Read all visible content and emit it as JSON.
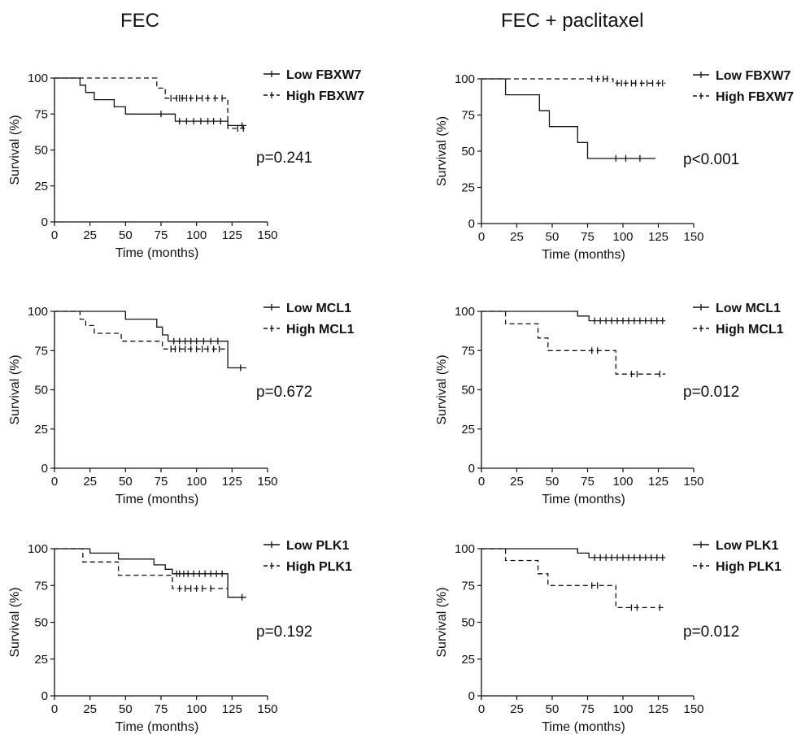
{
  "columns": [
    {
      "title": "FEC"
    },
    {
      "title": "FEC + paclitaxel"
    }
  ],
  "chart_data": [
    {
      "type": "line",
      "panel": "FEC - FBXW7",
      "xlabel": "Time (months)",
      "ylabel": "Survival (%)",
      "xlim": [
        0,
        150
      ],
      "ylim": [
        0,
        100
      ],
      "xticks": [
        0,
        25,
        50,
        75,
        100,
        125,
        150
      ],
      "yticks": [
        0,
        25,
        50,
        75,
        100
      ],
      "annotation": "p=0.241",
      "legend_position": "top-right",
      "series": [
        {
          "name": "Low FBXW7",
          "style": "solid",
          "steps": [
            [
              0,
              100
            ],
            [
              18,
              100
            ],
            [
              18,
              95
            ],
            [
              22,
              95
            ],
            [
              22,
              90
            ],
            [
              28,
              90
            ],
            [
              28,
              85
            ],
            [
              42,
              85
            ],
            [
              42,
              80
            ],
            [
              50,
              80
            ],
            [
              50,
              75
            ],
            [
              85,
              75
            ],
            [
              85,
              70
            ],
            [
              122,
              70
            ],
            [
              122,
              67
            ],
            [
              135,
              67
            ]
          ],
          "censored": [
            [
              75,
              75
            ],
            [
              88,
              70
            ],
            [
              93,
              70
            ],
            [
              98,
              70
            ],
            [
              103,
              70
            ],
            [
              108,
              70
            ],
            [
              112,
              70
            ],
            [
              117,
              70
            ],
            [
              132,
              67
            ]
          ]
        },
        {
          "name": "High FBXW7",
          "style": "dashed",
          "steps": [
            [
              0,
              100
            ],
            [
              72,
              100
            ],
            [
              72,
              93
            ],
            [
              78,
              93
            ],
            [
              78,
              86
            ],
            [
              122,
              86
            ],
            [
              122,
              65
            ],
            [
              135,
              65
            ]
          ],
          "censored": [
            [
              82,
              86
            ],
            [
              86,
              86
            ],
            [
              88,
              86
            ],
            [
              90,
              86
            ],
            [
              93,
              86
            ],
            [
              96,
              86
            ],
            [
              100,
              86
            ],
            [
              104,
              86
            ],
            [
              108,
              86
            ],
            [
              113,
              86
            ],
            [
              118,
              86
            ],
            [
              129,
              65
            ],
            [
              133,
              65
            ]
          ]
        }
      ]
    },
    {
      "type": "line",
      "panel": "FEC + paclitaxel - FBXW7",
      "xlabel": "Time (months)",
      "ylabel": "Survival (%)",
      "xlim": [
        0,
        150
      ],
      "ylim": [
        0,
        100
      ],
      "xticks": [
        0,
        25,
        50,
        75,
        100,
        125,
        150
      ],
      "yticks": [
        0,
        25,
        50,
        75,
        100
      ],
      "annotation": "p<0.001",
      "legend_position": "top-right",
      "series": [
        {
          "name": "Low FBXW7",
          "style": "solid",
          "steps": [
            [
              0,
              100
            ],
            [
              17,
              100
            ],
            [
              17,
              89
            ],
            [
              41,
              89
            ],
            [
              41,
              78
            ],
            [
              48,
              78
            ],
            [
              48,
              67
            ],
            [
              68,
              67
            ],
            [
              68,
              56
            ],
            [
              75,
              56
            ],
            [
              75,
              45
            ],
            [
              123,
              45
            ]
          ],
          "censored": [
            [
              95,
              45
            ],
            [
              102,
              45
            ],
            [
              112,
              45
            ]
          ]
        },
        {
          "name": "High FBXW7",
          "style": "dashed",
          "steps": [
            [
              0,
              100
            ],
            [
              93,
              100
            ],
            [
              93,
              97
            ],
            [
              130,
              97
            ]
          ],
          "censored": [
            [
              78,
              100
            ],
            [
              82,
              100
            ],
            [
              86,
              100
            ],
            [
              89,
              100
            ],
            [
              96,
              97
            ],
            [
              99,
              97
            ],
            [
              102,
              97
            ],
            [
              106,
              97
            ],
            [
              109,
              97
            ],
            [
              113,
              97
            ],
            [
              117,
              97
            ],
            [
              121,
              97
            ],
            [
              125,
              97
            ],
            [
              128,
              97
            ]
          ]
        }
      ]
    },
    {
      "type": "line",
      "panel": "FEC - MCL1",
      "xlabel": "Time (months)",
      "ylabel": "Survival (%)",
      "xlim": [
        0,
        150
      ],
      "ylim": [
        0,
        100
      ],
      "xticks": [
        0,
        25,
        50,
        75,
        100,
        125,
        150
      ],
      "yticks": [
        0,
        25,
        50,
        75,
        100
      ],
      "annotation": "p=0.672",
      "legend_position": "top-right",
      "series": [
        {
          "name": "Low MCL1",
          "style": "solid",
          "steps": [
            [
              0,
              100
            ],
            [
              50,
              100
            ],
            [
              50,
              95
            ],
            [
              72,
              95
            ],
            [
              72,
              90
            ],
            [
              76,
              90
            ],
            [
              76,
              85
            ],
            [
              80,
              85
            ],
            [
              80,
              81
            ],
            [
              122,
              81
            ],
            [
              122,
              64
            ],
            [
              135,
              64
            ]
          ],
          "censored": [
            [
              84,
              81
            ],
            [
              88,
              81
            ],
            [
              92,
              81
            ],
            [
              96,
              81
            ],
            [
              100,
              81
            ],
            [
              105,
              81
            ],
            [
              110,
              81
            ],
            [
              115,
              81
            ],
            [
              131,
              64
            ]
          ]
        },
        {
          "name": "High MCL1",
          "style": "dashed",
          "steps": [
            [
              0,
              100
            ],
            [
              18,
              100
            ],
            [
              18,
              95
            ],
            [
              22,
              95
            ],
            [
              22,
              91
            ],
            [
              28,
              91
            ],
            [
              28,
              86
            ],
            [
              47,
              86
            ],
            [
              47,
              81
            ],
            [
              76,
              81
            ],
            [
              76,
              76
            ],
            [
              122,
              76
            ]
          ],
          "censored": [
            [
              82,
              76
            ],
            [
              85,
              76
            ],
            [
              88,
              76
            ],
            [
              92,
              76
            ],
            [
              96,
              76
            ],
            [
              100,
              76
            ],
            [
              104,
              76
            ],
            [
              108,
              76
            ],
            [
              112,
              76
            ],
            [
              116,
              76
            ]
          ]
        }
      ]
    },
    {
      "type": "line",
      "panel": "FEC + paclitaxel - MCL1",
      "xlabel": "Time (months)",
      "ylabel": "Survival (%)",
      "xlim": [
        0,
        150
      ],
      "ylim": [
        0,
        100
      ],
      "xticks": [
        0,
        25,
        50,
        75,
        100,
        125,
        150
      ],
      "yticks": [
        0,
        25,
        50,
        75,
        100
      ],
      "annotation": "p=0.012",
      "legend_position": "top-right",
      "series": [
        {
          "name": "Low MCL1",
          "style": "solid",
          "steps": [
            [
              0,
              100
            ],
            [
              68,
              100
            ],
            [
              68,
              97
            ],
            [
              76,
              97
            ],
            [
              76,
              94
            ],
            [
              130,
              94
            ]
          ],
          "censored": [
            [
              80,
              94
            ],
            [
              84,
              94
            ],
            [
              88,
              94
            ],
            [
              92,
              94
            ],
            [
              96,
              94
            ],
            [
              100,
              94
            ],
            [
              104,
              94
            ],
            [
              108,
              94
            ],
            [
              112,
              94
            ],
            [
              116,
              94
            ],
            [
              120,
              94
            ],
            [
              124,
              94
            ],
            [
              128,
              94
            ]
          ]
        },
        {
          "name": "High MCL1",
          "style": "dashed",
          "steps": [
            [
              0,
              100
            ],
            [
              17,
              100
            ],
            [
              17,
              92
            ],
            [
              40,
              92
            ],
            [
              40,
              83
            ],
            [
              47,
              83
            ],
            [
              47,
              75
            ],
            [
              95,
              75
            ],
            [
              95,
              60
            ],
            [
              130,
              60
            ]
          ],
          "censored": [
            [
              78,
              75
            ],
            [
              82,
              75
            ],
            [
              106,
              60
            ],
            [
              110,
              60
            ],
            [
              126,
              60
            ]
          ]
        }
      ]
    },
    {
      "type": "line",
      "panel": "FEC - PLK1",
      "xlabel": "Time (months)",
      "ylabel": "Survival (%)",
      "xlim": [
        0,
        150
      ],
      "ylim": [
        0,
        100
      ],
      "xticks": [
        0,
        25,
        50,
        75,
        100,
        125,
        150
      ],
      "yticks": [
        0,
        25,
        50,
        75,
        100
      ],
      "annotation": "p=0.192",
      "legend_position": "top-right",
      "series": [
        {
          "name": "Low PLK1",
          "style": "solid",
          "steps": [
            [
              0,
              100
            ],
            [
              25,
              100
            ],
            [
              25,
              97
            ],
            [
              45,
              97
            ],
            [
              45,
              93
            ],
            [
              70,
              93
            ],
            [
              70,
              89
            ],
            [
              78,
              89
            ],
            [
              78,
              86
            ],
            [
              83,
              86
            ],
            [
              83,
              83
            ],
            [
              122,
              83
            ],
            [
              122,
              67
            ],
            [
              135,
              67
            ]
          ],
          "censored": [
            [
              86,
              83
            ],
            [
              88,
              83
            ],
            [
              91,
              83
            ],
            [
              94,
              83
            ],
            [
              98,
              83
            ],
            [
              102,
              83
            ],
            [
              106,
              83
            ],
            [
              110,
              83
            ],
            [
              114,
              83
            ],
            [
              118,
              83
            ],
            [
              132,
              67
            ]
          ]
        },
        {
          "name": "High PLK1",
          "style": "dashed",
          "steps": [
            [
              0,
              100
            ],
            [
              20,
              100
            ],
            [
              20,
              91
            ],
            [
              45,
              91
            ],
            [
              45,
              82
            ],
            [
              83,
              82
            ],
            [
              83,
              73
            ],
            [
              122,
              73
            ]
          ],
          "censored": [
            [
              88,
              73
            ],
            [
              92,
              73
            ],
            [
              96,
              73
            ],
            [
              100,
              73
            ],
            [
              104,
              73
            ],
            [
              110,
              73
            ]
          ]
        }
      ]
    },
    {
      "type": "line",
      "panel": "FEC + paclitaxel - PLK1",
      "xlabel": "Time (months)",
      "ylabel": "Survival (%)",
      "xlim": [
        0,
        150
      ],
      "ylim": [
        0,
        100
      ],
      "xticks": [
        0,
        25,
        50,
        75,
        100,
        125,
        150
      ],
      "yticks": [
        0,
        25,
        50,
        75,
        100
      ],
      "annotation": "p=0.012",
      "legend_position": "top-right",
      "series": [
        {
          "name": "Low PLK1",
          "style": "solid",
          "steps": [
            [
              0,
              100
            ],
            [
              68,
              100
            ],
            [
              68,
              97
            ],
            [
              76,
              97
            ],
            [
              76,
              94
            ],
            [
              130,
              94
            ]
          ],
          "censored": [
            [
              80,
              94
            ],
            [
              84,
              94
            ],
            [
              88,
              94
            ],
            [
              92,
              94
            ],
            [
              96,
              94
            ],
            [
              100,
              94
            ],
            [
              104,
              94
            ],
            [
              108,
              94
            ],
            [
              112,
              94
            ],
            [
              116,
              94
            ],
            [
              120,
              94
            ],
            [
              124,
              94
            ],
            [
              128,
              94
            ]
          ]
        },
        {
          "name": "High PLK1",
          "style": "dashed",
          "steps": [
            [
              0,
              100
            ],
            [
              17,
              100
            ],
            [
              17,
              92
            ],
            [
              40,
              92
            ],
            [
              40,
              83
            ],
            [
              47,
              83
            ],
            [
              47,
              75
            ],
            [
              95,
              75
            ],
            [
              95,
              60
            ],
            [
              130,
              60
            ]
          ],
          "censored": [
            [
              78,
              75
            ],
            [
              82,
              75
            ],
            [
              106,
              60
            ],
            [
              110,
              60
            ],
            [
              126,
              60
            ]
          ]
        }
      ]
    }
  ]
}
